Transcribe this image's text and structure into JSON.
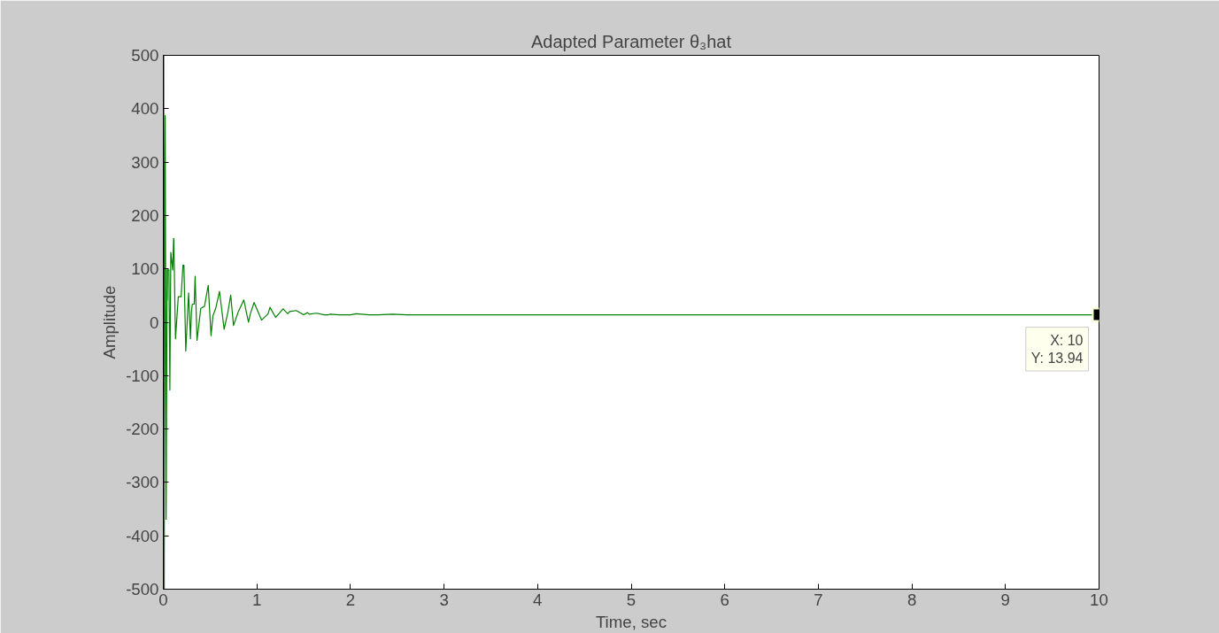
{
  "chart_data": {
    "type": "line",
    "title": "Adapted Parameter θ₃hat",
    "xlabel": "Time, sec",
    "ylabel": "Amplitude",
    "xlim": [
      0,
      10
    ],
    "ylim": [
      -500,
      500
    ],
    "xticks": [
      0,
      1,
      2,
      3,
      4,
      5,
      6,
      7,
      8,
      9,
      10
    ],
    "yticks": [
      -500,
      -400,
      -300,
      -200,
      -100,
      0,
      100,
      200,
      300,
      400,
      500
    ],
    "grid": false,
    "marker": "none",
    "line_style": "solid",
    "series": [
      {
        "color": "#008000",
        "x": [
          0,
          0.005,
          0.01,
          0.015,
          0.02,
          0.03,
          0.04,
          0.042,
          0.045,
          0.06,
          0.07,
          0.08,
          0.1,
          0.11,
          0.112,
          0.13,
          0.16,
          0.19,
          0.21,
          0.22,
          0.24,
          0.27,
          0.29,
          0.3,
          0.31,
          0.33,
          0.34,
          0.36,
          0.4,
          0.44,
          0.48,
          0.51,
          0.53,
          0.56,
          0.6,
          0.65,
          0.69,
          0.72,
          0.75,
          0.8,
          0.86,
          0.91,
          0.93,
          0.97,
          1.05,
          1.12,
          1.14,
          1.2,
          1.28,
          1.33,
          1.35,
          1.42,
          1.5,
          1.54,
          1.56,
          1.64,
          1.72,
          1.76,
          1.78,
          1.88,
          1.98,
          2.0,
          2.06,
          2.2,
          2.3,
          2.45,
          2.6,
          2.8,
          3.0,
          3.2,
          3.4,
          3.6,
          3.8,
          4.0,
          4.2,
          5.0,
          5.2,
          5.4,
          7.0,
          9.5,
          9.6,
          9.7,
          10
        ],
        "values": [
          0,
          500,
          -500,
          184,
          387,
          -369,
          98,
          41,
          98,
          98,
          -127,
          131,
          98,
          157,
          157,
          -31,
          48,
          48,
          107,
          107,
          -54,
          55,
          -31,
          19,
          34,
          34,
          86,
          -34,
          26,
          30,
          69,
          -25,
          12,
          26,
          58,
          -13,
          19,
          51,
          -6,
          19,
          42,
          0,
          16,
          37,
          4,
          16,
          28,
          9,
          25,
          16,
          20,
          22,
          14,
          18,
          15,
          17,
          14,
          13.94,
          15,
          13.94,
          13.94,
          13.94,
          16,
          13.94,
          13.94,
          15,
          13.94,
          13.94,
          13.94,
          13.94,
          13.94,
          13.94,
          13.94,
          13.94,
          13.94,
          13.94,
          13.94,
          13.94,
          13.94,
          13.94,
          13.94,
          13.94,
          13.94
        ]
      }
    ],
    "annotations": [
      {
        "text": "X: 10\nY: 13.94",
        "x": 10,
        "y": 13.94
      }
    ]
  }
}
